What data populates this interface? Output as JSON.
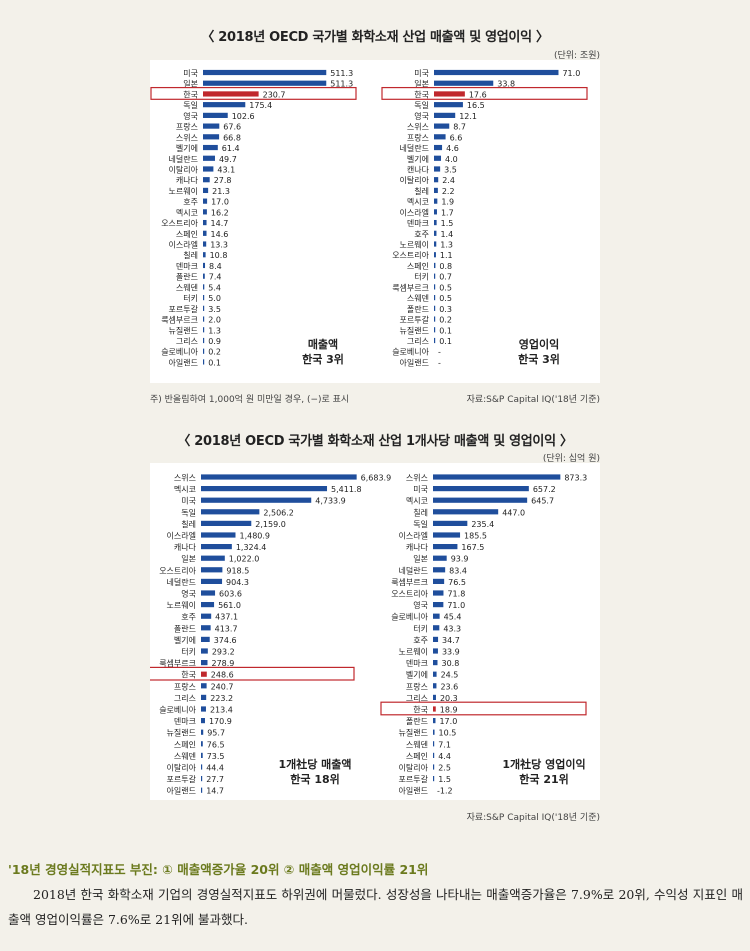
{
  "chart_data": [
    {
      "type": "bar",
      "orientation": "horizontal",
      "section": 1,
      "title": "〈 2018년 OECD 국가별 화학소재 산업 매출액 및 영업이익 〉",
      "unit": "(단위: 조원)",
      "panel_label": [
        "매출액",
        "한국 3위"
      ],
      "highlight": "한국",
      "highlight_color": "#c0282d",
      "bar_color": "#1f4e9c",
      "categories": [
        "미국",
        "일본",
        "한국",
        "독일",
        "영국",
        "프랑스",
        "스위스",
        "벨기에",
        "네덜란드",
        "이탈리아",
        "캐나다",
        "노르웨이",
        "호주",
        "멕시코",
        "오스트리아",
        "스페인",
        "이스라엘",
        "칠레",
        "덴마크",
        "폴란드",
        "스웨덴",
        "터키",
        "포르투갈",
        "룩셈부르크",
        "뉴질랜드",
        "그리스",
        "슬로베니아",
        "아일랜드"
      ],
      "values": [
        511.3,
        511.3,
        230.7,
        175.4,
        102.6,
        67.6,
        66.8,
        61.4,
        49.7,
        43.1,
        27.8,
        21.3,
        17.0,
        16.2,
        14.7,
        14.6,
        13.3,
        10.8,
        8.4,
        7.4,
        5.4,
        5.0,
        3.5,
        2.0,
        1.3,
        0.9,
        0.2,
        0.1
      ],
      "labels": [
        "511.3",
        "511.3",
        "230.7",
        "175.4",
        "102.6",
        "67.6",
        "66.8",
        "61.4",
        "49.7",
        "43.1",
        "27.8",
        "21.3",
        "17.0",
        "16.2",
        "14.7",
        "14.6",
        "13.3",
        "10.8",
        "8.4",
        "7.4",
        "5.4",
        "5.0",
        "3.5",
        "2.0",
        "1.3",
        "0.9",
        "0.2",
        "0.1"
      ],
      "xlim": [
        0,
        560
      ]
    },
    {
      "type": "bar",
      "orientation": "horizontal",
      "section": 1,
      "panel_label": [
        "영업이익",
        "한국 3위"
      ],
      "highlight": "한국",
      "categories": [
        "미국",
        "일본",
        "한국",
        "독일",
        "영국",
        "스위스",
        "프랑스",
        "네덜란드",
        "벨기에",
        "캔나다",
        "이탈리아",
        "칠레",
        "멕시코",
        "이스라엘",
        "덴마크",
        "호주",
        "노르웨이",
        "오스트리아",
        "스페인",
        "터키",
        "룩셈부르크",
        "스웨덴",
        "폴란드",
        "포르투갈",
        "뉴질랜드",
        "그리스",
        "슬로베니아",
        "아일랜드"
      ],
      "values": [
        71.0,
        33.8,
        17.6,
        16.5,
        12.1,
        8.7,
        6.6,
        4.6,
        4.0,
        3.5,
        2.4,
        2.2,
        1.9,
        1.7,
        1.5,
        1.4,
        1.3,
        1.1,
        0.8,
        0.7,
        0.5,
        0.5,
        0.3,
        0.2,
        0.1,
        0.1,
        null,
        null
      ],
      "labels": [
        "71.0",
        "33.8",
        "17.6",
        "16.5",
        "12.1",
        "8.7",
        "6.6",
        "4.6",
        "4.0",
        "3.5",
        "2.4",
        "2.2",
        "1.9",
        "1.7",
        "1.5",
        "1.4",
        "1.3",
        "1.1",
        "0.8",
        "0.7",
        "0.5",
        "0.5",
        "0.3",
        "0.2",
        "0.1",
        "0.1",
        "-",
        "-"
      ],
      "xlim": [
        0,
        77
      ]
    },
    {
      "type": "bar",
      "orientation": "horizontal",
      "section": 2,
      "title": "〈 2018년 OECD 국가별 화학소재 산업 1개사당 매출액 및 영업이익 〉",
      "unit": "(단위: 십억 원)",
      "panel_label": [
        "1개社당 매출액",
        "한국 18위"
      ],
      "highlight": "한국",
      "categories": [
        "스위스",
        "멕시코",
        "미국",
        "독일",
        "칠레",
        "이스라엘",
        "캐나다",
        "일본",
        "오스트리아",
        "네덜란드",
        "영국",
        "노르웨이",
        "호주",
        "폴란드",
        "벨기에",
        "터키",
        "룩셈부르크",
        "한국",
        "프랑스",
        "그리스",
        "슬로베니아",
        "덴마크",
        "뉴질랜드",
        "스페인",
        "스웨덴",
        "이탈리아",
        "포르투갈",
        "아일랜드"
      ],
      "values": [
        6683.9,
        5411.8,
        4733.9,
        2506.2,
        2159.0,
        1480.9,
        1324.4,
        1022.0,
        918.5,
        904.3,
        603.6,
        561.0,
        437.1,
        413.7,
        374.6,
        293.2,
        278.9,
        248.6,
        240.7,
        223.2,
        213.4,
        170.9,
        95.7,
        76.5,
        73.5,
        44.4,
        27.7,
        14.7
      ],
      "labels": [
        "6,683.9",
        "5,411.8",
        "4,733.9",
        "2,506.2",
        "2,159.0",
        "1,480.9",
        "1,324.4",
        "1,022.0",
        "918.5",
        "904.3",
        "603.6",
        "561.0",
        "437.1",
        "413.7",
        "374.6",
        "293.2",
        "278.9",
        "248.6",
        "240.7",
        "223.2",
        "213.4",
        "170.9",
        "95.7",
        "76.5",
        "73.5",
        "44.4",
        "27.7",
        "14.7"
      ],
      "xlim": [
        0,
        7300
      ]
    },
    {
      "type": "bar",
      "orientation": "horizontal",
      "section": 2,
      "panel_label": [
        "1개社당 영업이익",
        "한국 21위"
      ],
      "highlight": "한국",
      "categories": [
        "스위스",
        "미국",
        "멕시코",
        "칠레",
        "독일",
        "이스라엘",
        "캐나다",
        "일본",
        "네덜란드",
        "룩셈부르크",
        "오스트리아",
        "영국",
        "슬로베니아",
        "터키",
        "호주",
        "노르웨이",
        "덴마크",
        "벨기에",
        "프랑스",
        "그리스",
        "한국",
        "폴란드",
        "뉴질랜드",
        "스웨덴",
        "스페인",
        "이탈리아",
        "포르투갈",
        "아일랜드"
      ],
      "values": [
        873.3,
        657.2,
        645.7,
        447.0,
        235.4,
        185.5,
        167.5,
        93.9,
        83.4,
        76.5,
        71.8,
        71.0,
        45.4,
        43.3,
        34.7,
        33.9,
        30.8,
        24.5,
        23.6,
        20.3,
        18.9,
        17.0,
        10.5,
        7.1,
        4.4,
        2.5,
        1.5,
        -1.2
      ],
      "labels": [
        "873.3",
        "657.2",
        "645.7",
        "447.0",
        "235.4",
        "185.5",
        "167.5",
        "93.9",
        "83.4",
        "76.5",
        "71.8",
        "71.0",
        "45.4",
        "43.3",
        "34.7",
        "33.9",
        "30.8",
        "24.5",
        "23.6",
        "20.3",
        "18.9",
        "17.0",
        "10.5",
        "7.1",
        "4.4",
        "2.5",
        "1.5",
        "-1.2"
      ],
      "xlim": [
        0,
        960
      ]
    }
  ],
  "notes": {
    "section1_footnote": "주) 반올림하여 1,000억 원 미만일 경우, (−)로 표시",
    "section1_source": "자료:S&P Capital IQ('18년 기준)",
    "section2_source": "자료:S&P Capital IQ('18년 기준)"
  },
  "article": {
    "heading": "'18년 경영실적지표도 부진: ① 매출액증가율 20위 ② 매출액 영업이익률 21위",
    "body": "2018년 한국 화학소재 기업의 경영실적지표도 하위권에 머물렀다. 성장성을 나타내는 매출액증가율은 7.9%로 20위, 수익성 지표인 매출액 영업이익률은 7.6%로 21위에 불과했다."
  }
}
